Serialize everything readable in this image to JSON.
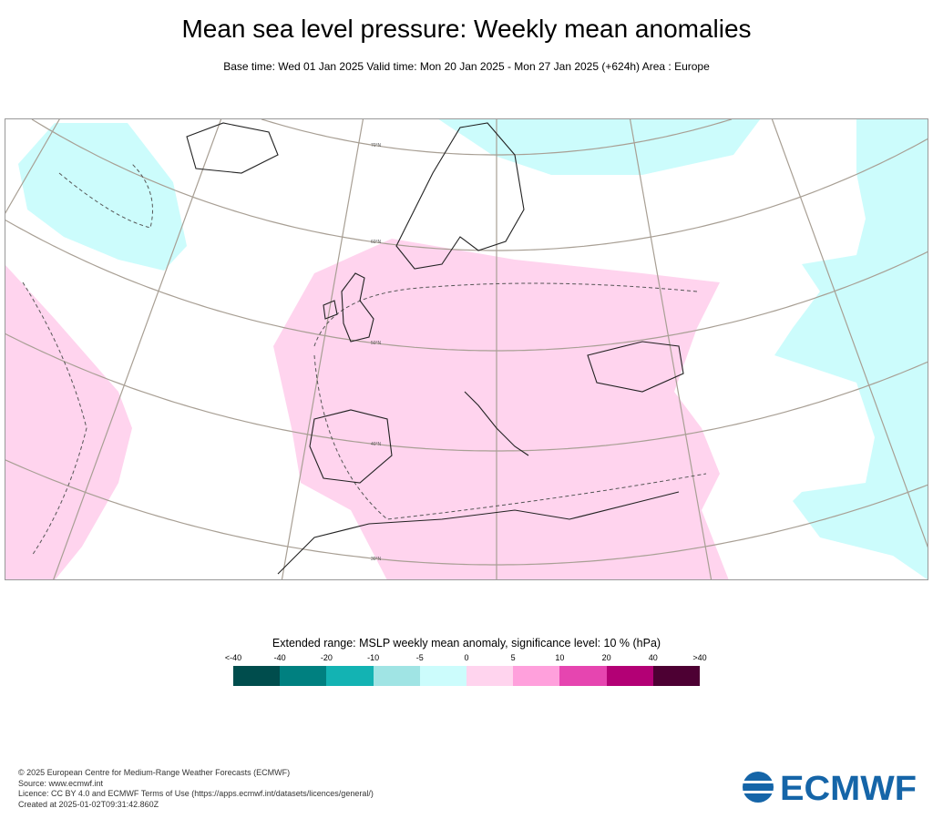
{
  "title": "Mean sea level pressure: Weekly mean anomalies",
  "subtitle": "Base time: Wed 01 Jan 2025 Valid time: Mon 20 Jan 2025 - Mon 27 Jan 2025 (+624h) Area : Europe",
  "chart_data": {
    "type": "heatmap",
    "title": "Mean sea level pressure: Weekly mean anomalies",
    "area": "Europe",
    "projection": "conic",
    "latitude_labels": [
      "70°N",
      "60°N",
      "50°N",
      "40°N",
      "30°N"
    ],
    "colorbar": {
      "title": "Extended range: MSLP weekly mean anomaly, significance level: 10 % (hPa)",
      "tick_labels": [
        "<-40",
        "-40",
        "-20",
        "-10",
        "-5",
        "0",
        "5",
        "10",
        "20",
        "40",
        ">40"
      ],
      "colors": [
        "#004d4d",
        "#008080",
        "#13b3b3",
        "#a0e4e4",
        "#ccfcfc",
        "#ffd4ee",
        "#ffa0dc",
        "#e645b0",
        "#b30075",
        "#4d0033"
      ]
    },
    "regions": [
      {
        "area": "Central/southern Europe, Mediterranean, North Africa",
        "range": "0 to 5"
      },
      {
        "area": "Western Atlantic",
        "range": "0 to 5"
      },
      {
        "area": "Greenland / Iceland Sea",
        "range": "-5 to 0"
      },
      {
        "area": "Barents Sea / northern Russia",
        "range": "-5 to 0"
      },
      {
        "area": "Eastern Russia / Middle East",
        "range": "-5 to 0"
      }
    ]
  },
  "footer": {
    "copyright": "© 2025 European Centre for Medium-Range Weather Forecasts (ECMWF)",
    "source": "Source: www.ecmwf.int",
    "licence": "Licence: CC BY 4.0 and ECMWF Terms of Use (https://apps.ecmwf.int/datasets/licences/general/)",
    "created": "Created at 2025-01-02T09:31:42.860Z"
  },
  "logo": {
    "text": "ECMWF",
    "color": "#1565a8"
  }
}
